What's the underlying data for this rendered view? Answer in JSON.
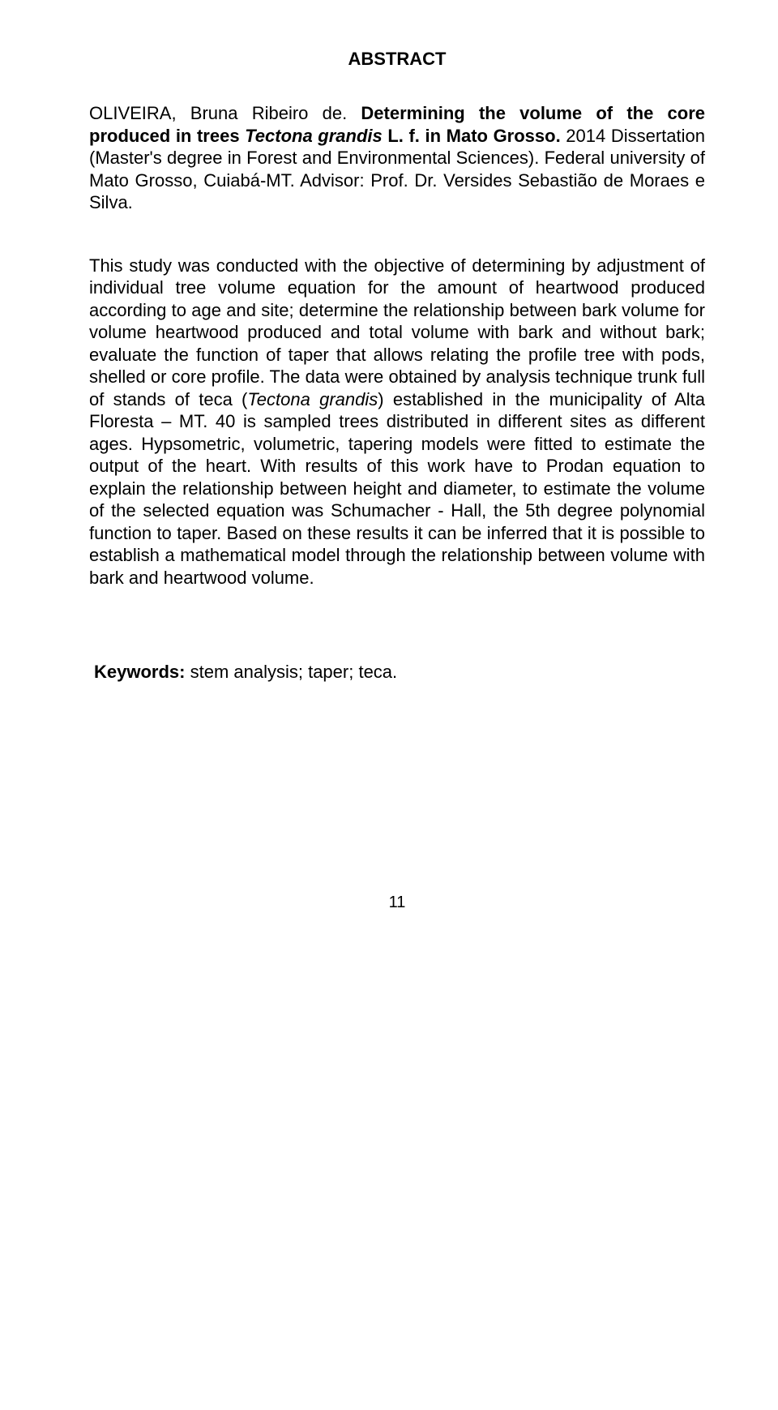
{
  "title": "ABSTRACT",
  "citation": {
    "author": "OLIVEIRA, Bruna Ribeiro de. ",
    "work_title_1": "Determining the volume of the core produced in trees ",
    "species": "Tectona grandis",
    "work_title_2": " L. f. in  Mato Grosso. ",
    "rest": "2014 Dissertation (Master's degree in Forest and Environmental Sciences). Federal university of Mato Grosso, Cuiabá-MT. Advisor: Prof. Dr. Versides Sebastião de Moraes e Silva."
  },
  "body": {
    "p1_a": "This study was conducted with the objective of determining by adjustment of individual tree volume equation for the amount of heartwood produced according to age and site; determine the relationship between bark volume for volume heartwood produced and total volume with bark and without bark; evaluate the function of taper that allows relating the profile tree with pods, shelled or core profile. The data were obtained by analysis technique trunk full of stands of teca (",
    "p1_species": "Tectona grandis",
    "p1_b": ") established in the municipality of Alta Floresta – MT. 40 is sampled trees distributed in different sites as different ages. Hypsometric, volumetric, tapering models were fitted to estimate the output of the heart. With results of this work have to Prodan equation to explain the relationship between height and diameter, to estimate the volume of the selected equation was Schumacher - Hall, the 5th degree polynomial function to taper. Based on these results it can be inferred that it is possible to establish a mathematical model through the relationship between volume with bark and heartwood volume."
  },
  "keywords": {
    "label": "Keywords:",
    "text": " stem analysis; taper; teca."
  },
  "page_number": "11"
}
